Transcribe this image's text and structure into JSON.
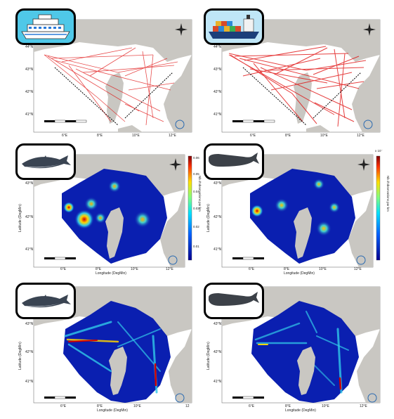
{
  "panels": {
    "p1": {
      "icon": "cruise-ship-icon",
      "lat_ticks": [
        "44°N",
        "43°N",
        "42°N",
        "41°N"
      ],
      "lon_ticks": [
        "6°E",
        "8°E",
        "10°E",
        "12°E"
      ]
    },
    "p2": {
      "icon": "cargo-ship-icon",
      "lat_ticks": [
        "44°N",
        "43°N",
        "42°N",
        "41°N"
      ],
      "lon_ticks": [
        "6°E",
        "8°E",
        "10°E",
        "12°E"
      ]
    },
    "p3": {
      "icon": "fin-whale-icon",
      "lat_ticks": [
        "43°N",
        "42°N",
        "41°N"
      ],
      "lon_ticks": [
        "6°E",
        "8°E",
        "10°E",
        "12°E"
      ],
      "xlabel": "Longitude (DegMin)",
      "ylabel": "Latitude (DegMin)",
      "colorbar_label": "Nb d'observations par km",
      "colorbar_ticks": [
        "0.06",
        "0.05",
        "0.04",
        "0.03",
        "0.02",
        "0.01"
      ]
    },
    "p4": {
      "icon": "sperm-whale-icon",
      "lat_ticks": [
        "43°N",
        "42°N",
        "41°N"
      ],
      "lon_ticks": [
        "6°E",
        "8°E",
        "10°E",
        "12°E"
      ],
      "xlabel": "Longitude (DegMin)",
      "ylabel": "Latitude (DegMin)",
      "colorbar_label": "Nb d'observations par km",
      "colorbar_top": "x 10⁻"
    },
    "p5": {
      "icon": "fin-whale-icon",
      "lat_ticks": [
        "43°N",
        "42°N",
        "41°N"
      ],
      "lon_ticks": [
        "6°E",
        "8°E",
        "10°E",
        "12"
      ],
      "xlabel": "Longitude (DegMin)",
      "ylabel": "Latitude (DegMin)"
    },
    "p6": {
      "icon": "sperm-whale-icon",
      "lat_ticks": [
        "43°N",
        "42°N",
        "41°N"
      ],
      "lon_ticks": [
        "6°E",
        "8°E",
        "10°E",
        "12°E"
      ],
      "xlabel": "Longitude (DegMin)",
      "ylabel": "Latitude (DegMin)"
    }
  },
  "colors": {
    "land": "#c9c7c2",
    "sea": "#ffffff",
    "traffic": "#e01010",
    "density_low": "#0a1fb0",
    "density_high": "#d00000"
  }
}
